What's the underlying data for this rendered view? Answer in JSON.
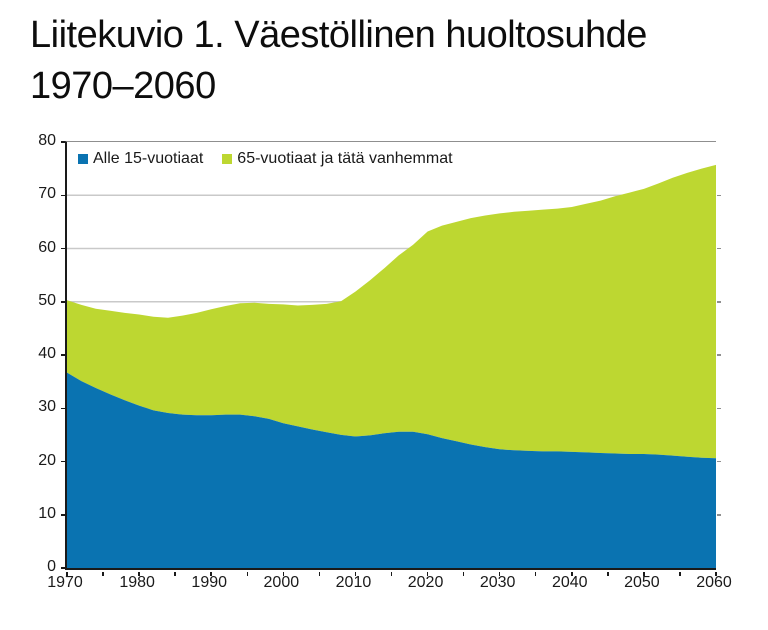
{
  "title": {
    "line1": "Liitekuvio 1. Väestöllinen huoltosuhde",
    "line2": "1970–2060"
  },
  "legend": {
    "items": [
      {
        "label": "Alle 15-vuotiaat",
        "color": "#0a73b1"
      },
      {
        "label": "65-vuotiaat ja tätä vanhemmat",
        "color": "#bdd731"
      }
    ]
  },
  "colors": {
    "under15_area": "#0a73b1",
    "over65_area": "#bdd731",
    "gridline": "#c9c9c9",
    "axis": "#1a1a1a",
    "frame_top": "#8f8f8f",
    "text": "#1a1a1a",
    "background": "#ffffff"
  },
  "chart_data": {
    "type": "area",
    "stacked": true,
    "title": "Liitekuvio 1. Väestöllinen huoltosuhde 1970–2060",
    "xlabel": "",
    "ylabel": "",
    "xlim": [
      1970,
      2060
    ],
    "ylim": [
      0,
      80
    ],
    "grid": "horizontal",
    "legend_position": "top-left-inside",
    "y_ticks": [
      0,
      10,
      20,
      30,
      40,
      50,
      60,
      70,
      80
    ],
    "x_major_ticks": [
      1970,
      1980,
      1990,
      2000,
      2010,
      2020,
      2030,
      2040,
      2050,
      2060
    ],
    "x_minor_tick_step": 5,
    "x": [
      1970,
      1972,
      1974,
      1976,
      1978,
      1980,
      1982,
      1984,
      1986,
      1988,
      1990,
      1992,
      1994,
      1996,
      1998,
      2000,
      2002,
      2004,
      2006,
      2008,
      2010,
      2012,
      2014,
      2016,
      2018,
      2020,
      2022,
      2024,
      2026,
      2028,
      2030,
      2032,
      2034,
      2036,
      2038,
      2040,
      2042,
      2044,
      2046,
      2048,
      2050,
      2052,
      2054,
      2056,
      2058,
      2060
    ],
    "series": [
      {
        "name": "Alle 15-vuotiaat",
        "color": "#0a73b1",
        "values": [
          36.7,
          35.1,
          33.8,
          32.6,
          31.5,
          30.5,
          29.6,
          29.1,
          28.8,
          28.7,
          28.7,
          28.8,
          28.8,
          28.5,
          28.0,
          27.2,
          26.6,
          26.0,
          25.5,
          25.0,
          24.7,
          24.9,
          25.3,
          25.6,
          25.6,
          25.1,
          24.4,
          23.8,
          23.2,
          22.7,
          22.3,
          22.1,
          22.0,
          21.9,
          21.9,
          21.8,
          21.7,
          21.6,
          21.5,
          21.4,
          21.4,
          21.3,
          21.1,
          20.9,
          20.7,
          20.6
        ]
      },
      {
        "name": "65-vuotiaat ja tätä vanhemmat",
        "color": "#bdd731",
        "values": [
          13.6,
          14.3,
          14.9,
          15.7,
          16.4,
          17.1,
          17.6,
          17.9,
          18.6,
          19.2,
          19.9,
          20.4,
          20.9,
          21.3,
          21.6,
          22.3,
          22.7,
          23.4,
          24.1,
          25.1,
          27.2,
          29.1,
          31.0,
          33.1,
          35.1,
          38.1,
          39.9,
          41.2,
          42.5,
          43.5,
          44.3,
          44.8,
          45.1,
          45.4,
          45.6,
          46.0,
          46.7,
          47.4,
          48.3,
          49.1,
          49.8,
          50.9,
          52.2,
          53.3,
          54.3,
          55.1
        ]
      }
    ]
  }
}
